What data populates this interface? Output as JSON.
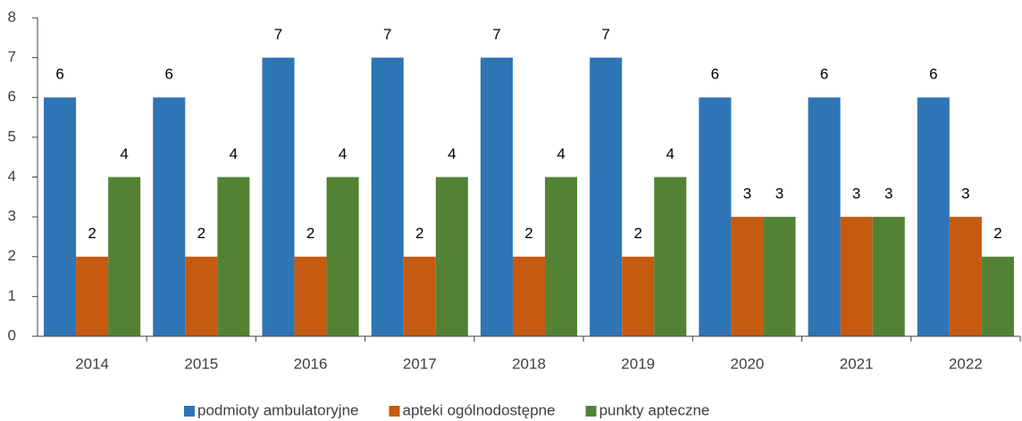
{
  "chart_data": {
    "type": "bar",
    "categories": [
      "2014",
      "2015",
      "2016",
      "2017",
      "2018",
      "2019",
      "2020",
      "2021",
      "2022"
    ],
    "series": [
      {
        "name": "podmioty ambulatoryjne",
        "color": "#2e75b6",
        "values": [
          6,
          6,
          7,
          7,
          7,
          7,
          6,
          6,
          6
        ]
      },
      {
        "name": "apteki ogólnodostępne",
        "color": "#c55a11",
        "values": [
          2,
          2,
          2,
          2,
          2,
          2,
          3,
          3,
          3
        ]
      },
      {
        "name": "punkty apteczne",
        "color": "#548235",
        "values": [
          4,
          4,
          4,
          4,
          4,
          4,
          3,
          3,
          2
        ]
      }
    ],
    "ylim": [
      0,
      8
    ],
    "yticks": [
      0,
      1,
      2,
      3,
      4,
      5,
      6,
      7,
      8
    ],
    "grid": false,
    "legend": "bottom"
  }
}
